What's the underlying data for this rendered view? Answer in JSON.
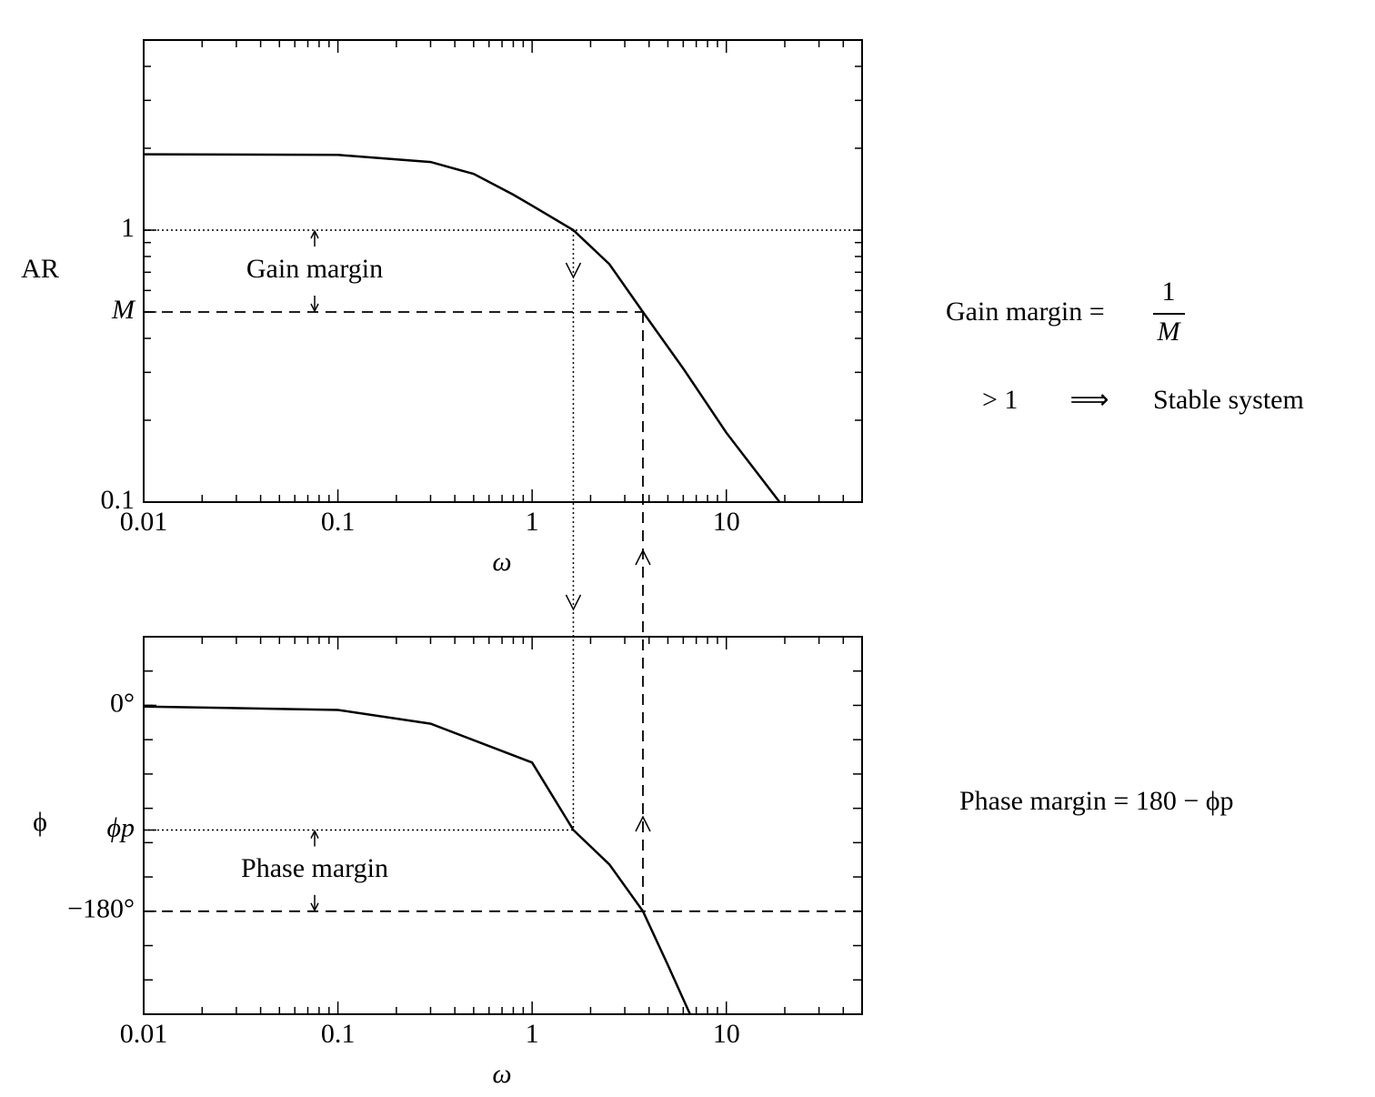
{
  "chart_data": [
    {
      "type": "line",
      "xlabel": "ω",
      "ylabel": "AR",
      "log_x": true,
      "log_y": true,
      "xlim": [
        0.01,
        50
      ],
      "xticks": [
        0.01,
        0.1,
        1,
        10
      ],
      "ylim": [
        0.1,
        5
      ],
      "yticks": [
        0.1,
        1,
        {
          "value": 0.5,
          "label": "M"
        }
      ],
      "annotation": "Gain margin",
      "crossovers": [
        1.63,
        3.72
      ],
      "series": [
        {
          "color": "#000000",
          "x": [
            0.01,
            0.1,
            0.3,
            0.5,
            0.8,
            1.0,
            1.63,
            2.5,
            3.72,
            6,
            10,
            18.8
          ],
          "values": [
            1.9,
            1.89,
            1.78,
            1.61,
            1.35,
            1.23,
            1.0,
            0.75,
            0.5,
            0.31,
            0.18,
            0.1
          ]
        }
      ]
    },
    {
      "type": "line",
      "xlabel": "ω",
      "ylabel": "ϕ",
      "log_x": true,
      "xlim": [
        0.01,
        50
      ],
      "xticks": [
        0.01,
        0.1,
        1,
        10
      ],
      "ylim": [
        -270,
        60
      ],
      "yticks": [
        {
          "value": 0,
          "label": "0°"
        },
        {
          "value": -180,
          "label": "−180°"
        },
        {
          "value": -109,
          "label": "ϕp"
        }
      ],
      "annotation": "Phase margin",
      "series": [
        {
          "color": "#000000",
          "x": [
            0.01,
            0.1,
            0.3,
            1,
            1.63,
            2.5,
            3.72,
            5,
            6.5
          ],
          "values": [
            -1,
            -4,
            -16,
            -50,
            -109,
            -139,
            -180,
            -227,
            -270
          ]
        }
      ]
    }
  ],
  "equations": {
    "gain_lhs": "Gain margin =",
    "gain_num": "1",
    "gain_den": "M",
    "stable_lhs": "> 1",
    "stable_arrow": "⟹",
    "stable_rhs": "Stable system",
    "phase": "Phase margin = 180 − ϕp"
  }
}
